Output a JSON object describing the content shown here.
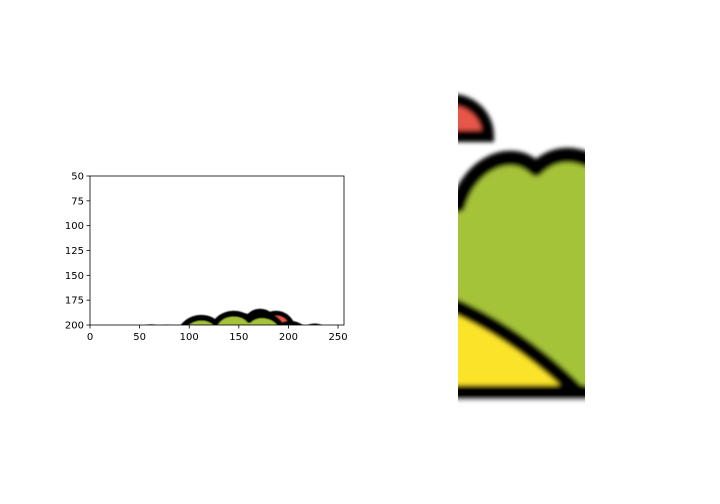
{
  "colors": {
    "outline": "#000000",
    "lettuce": "#a5c337",
    "tomato": "#e8574a",
    "shell": "#fbe32a",
    "background": "#ffffff"
  },
  "chart_data": [
    {
      "type": "image",
      "content": "taco-emoji",
      "xlim": [
        0,
        256
      ],
      "ylim": [
        200,
        50
      ],
      "y_inverted": true,
      "x_ticks": [
        0,
        50,
        100,
        150,
        200,
        250
      ],
      "y_ticks": [
        50,
        75,
        100,
        125,
        150,
        175,
        200
      ],
      "x_tick_labels": [
        "0",
        "50",
        "100",
        "150",
        "200",
        "250"
      ],
      "y_tick_labels": [
        "50",
        "75",
        "100",
        "125",
        "150",
        "175",
        "200"
      ],
      "title": "",
      "xlabel": "",
      "ylabel": "",
      "grid": false
    },
    {
      "type": "image",
      "content": "taco-emoji-zoomed-crop",
      "axes_visible": false
    }
  ]
}
